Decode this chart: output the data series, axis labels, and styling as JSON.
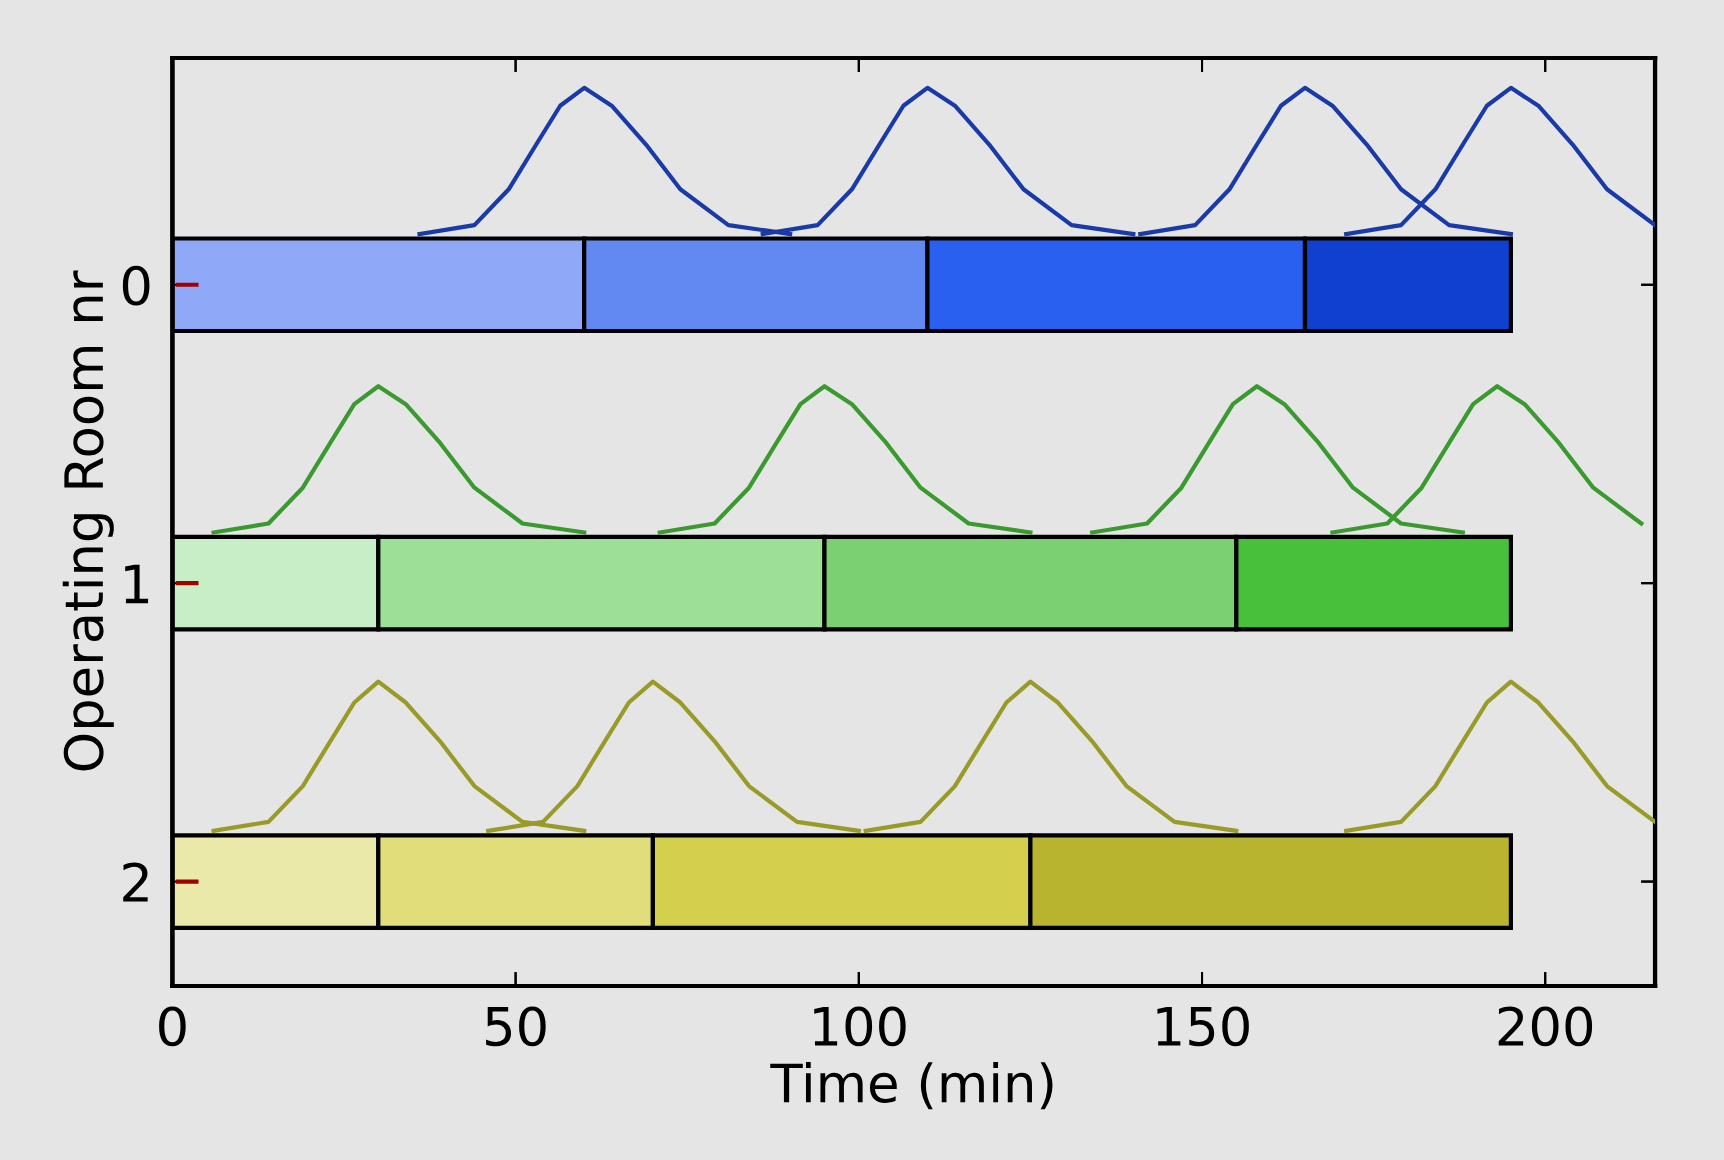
{
  "chart_data": [
    {
      "type": "bar",
      "orientation": "horizontal",
      "stacked": true,
      "xlabel": "Time (min)",
      "ylabel": "Operating Room nr",
      "categories": [
        "0",
        "1",
        "2"
      ],
      "xlim": [
        0,
        216
      ],
      "xticks": [
        0,
        50,
        100,
        150,
        200
      ],
      "grid": false,
      "series": [
        {
          "values": [
            60,
            30,
            30
          ],
          "colors": [
            "#8fa8f8",
            "#c8eec8",
            "#ebe9a9"
          ]
        },
        {
          "values": [
            50,
            65,
            40
          ],
          "colors": [
            "#6288f2",
            "#9ddf97",
            "#e0dd7a"
          ]
        },
        {
          "values": [
            55,
            60,
            55
          ],
          "colors": [
            "#2a60f0",
            "#7bd172",
            "#d4cf4c"
          ]
        },
        {
          "values": [
            30,
            40,
            70
          ],
          "colors": [
            "#1040d0",
            "#48c03c",
            "#b9b42f"
          ]
        }
      ]
    },
    {
      "type": "line",
      "xlim": [
        0,
        216
      ],
      "ylim": [
        2.35,
        -0.76
      ],
      "yticks": [
        0,
        1,
        2
      ],
      "tick_labels": false,
      "grid": false,
      "series": [
        {
          "color": "#a00000",
          "x": [
            0.8,
            3.5
          ],
          "values": [
            0,
            0
          ]
        },
        {
          "color": "#a00000",
          "x": [
            0.8,
            3.5
          ],
          "values": [
            1,
            1
          ]
        },
        {
          "color": "#a00000",
          "x": [
            0.8,
            3.5
          ],
          "values": [
            2,
            2
          ]
        },
        {
          "color": "#1a3aa8",
          "x": [
            36,
            44,
            49,
            53,
            56.5,
            60,
            64,
            69,
            74,
            81,
            90
          ],
          "values": [
            -0.17,
            -0.2,
            -0.32,
            -0.47,
            -0.6,
            -0.66,
            -0.6,
            -0.47,
            -0.32,
            -0.2,
            -0.17
          ]
        },
        {
          "color": "#1a3aa8",
          "x": [
            86,
            94,
            99,
            103,
            106.5,
            110,
            114,
            119,
            124,
            131,
            140
          ],
          "values": [
            -0.17,
            -0.2,
            -0.32,
            -0.47,
            -0.6,
            -0.66,
            -0.6,
            -0.47,
            -0.32,
            -0.2,
            -0.17
          ]
        },
        {
          "color": "#1a3aa8",
          "x": [
            141,
            149,
            154,
            158,
            161.5,
            165,
            169,
            174,
            179,
            186,
            195
          ],
          "values": [
            -0.17,
            -0.2,
            -0.32,
            -0.47,
            -0.6,
            -0.66,
            -0.6,
            -0.47,
            -0.32,
            -0.2,
            -0.17
          ]
        },
        {
          "color": "#1a3aa8",
          "x": [
            171,
            179,
            184,
            188,
            191.5,
            195,
            199,
            204,
            209,
            216
          ],
          "values": [
            -0.17,
            -0.2,
            -0.32,
            -0.47,
            -0.6,
            -0.66,
            -0.6,
            -0.47,
            -0.32,
            -0.2
          ]
        },
        {
          "color": "#3a9a30",
          "x": [
            6,
            14,
            19,
            23,
            26.5,
            30,
            34,
            39,
            44,
            51,
            60
          ],
          "values": [
            0.83,
            0.8,
            0.68,
            0.53,
            0.4,
            0.34,
            0.4,
            0.53,
            0.68,
            0.8,
            0.83
          ]
        },
        {
          "color": "#3a9a30",
          "x": [
            71,
            79,
            84,
            88,
            91.5,
            95,
            99,
            104,
            109,
            116,
            125
          ],
          "values": [
            0.83,
            0.8,
            0.68,
            0.53,
            0.4,
            0.34,
            0.4,
            0.53,
            0.68,
            0.8,
            0.83
          ]
        },
        {
          "color": "#3a9a30",
          "x": [
            134,
            142,
            147,
            151,
            154.5,
            158,
            162,
            167,
            172,
            179,
            188
          ],
          "values": [
            0.83,
            0.8,
            0.68,
            0.53,
            0.4,
            0.34,
            0.4,
            0.53,
            0.68,
            0.8,
            0.83
          ]
        },
        {
          "color": "#3a9a30",
          "x": [
            169,
            177,
            182,
            186,
            189.5,
            193,
            197,
            202,
            207,
            214
          ],
          "values": [
            0.83,
            0.8,
            0.68,
            0.53,
            0.4,
            0.34,
            0.4,
            0.53,
            0.68,
            0.8
          ]
        },
        {
          "color": "#9a9a28",
          "x": [
            6,
            14,
            19,
            23,
            26.5,
            30,
            34,
            39,
            44,
            51,
            60
          ],
          "values": [
            1.83,
            1.8,
            1.68,
            1.53,
            1.4,
            1.33,
            1.4,
            1.53,
            1.68,
            1.8,
            1.83
          ]
        },
        {
          "color": "#9a9a28",
          "x": [
            46,
            54,
            59,
            63,
            66.5,
            70,
            74,
            79,
            84,
            91,
            100
          ],
          "values": [
            1.83,
            1.8,
            1.68,
            1.53,
            1.4,
            1.33,
            1.4,
            1.53,
            1.68,
            1.8,
            1.83
          ]
        },
        {
          "color": "#9a9a28",
          "x": [
            101,
            109,
            114,
            118,
            121.5,
            125,
            129,
            134,
            139,
            146,
            155
          ],
          "values": [
            1.83,
            1.8,
            1.68,
            1.53,
            1.4,
            1.33,
            1.4,
            1.53,
            1.68,
            1.8,
            1.83
          ]
        },
        {
          "color": "#9a9a28",
          "x": [
            171,
            179,
            184,
            188,
            191.5,
            195,
            199,
            204,
            209,
            216
          ],
          "values": [
            1.83,
            1.8,
            1.68,
            1.53,
            1.4,
            1.33,
            1.4,
            1.53,
            1.68,
            1.8
          ]
        }
      ]
    }
  ]
}
